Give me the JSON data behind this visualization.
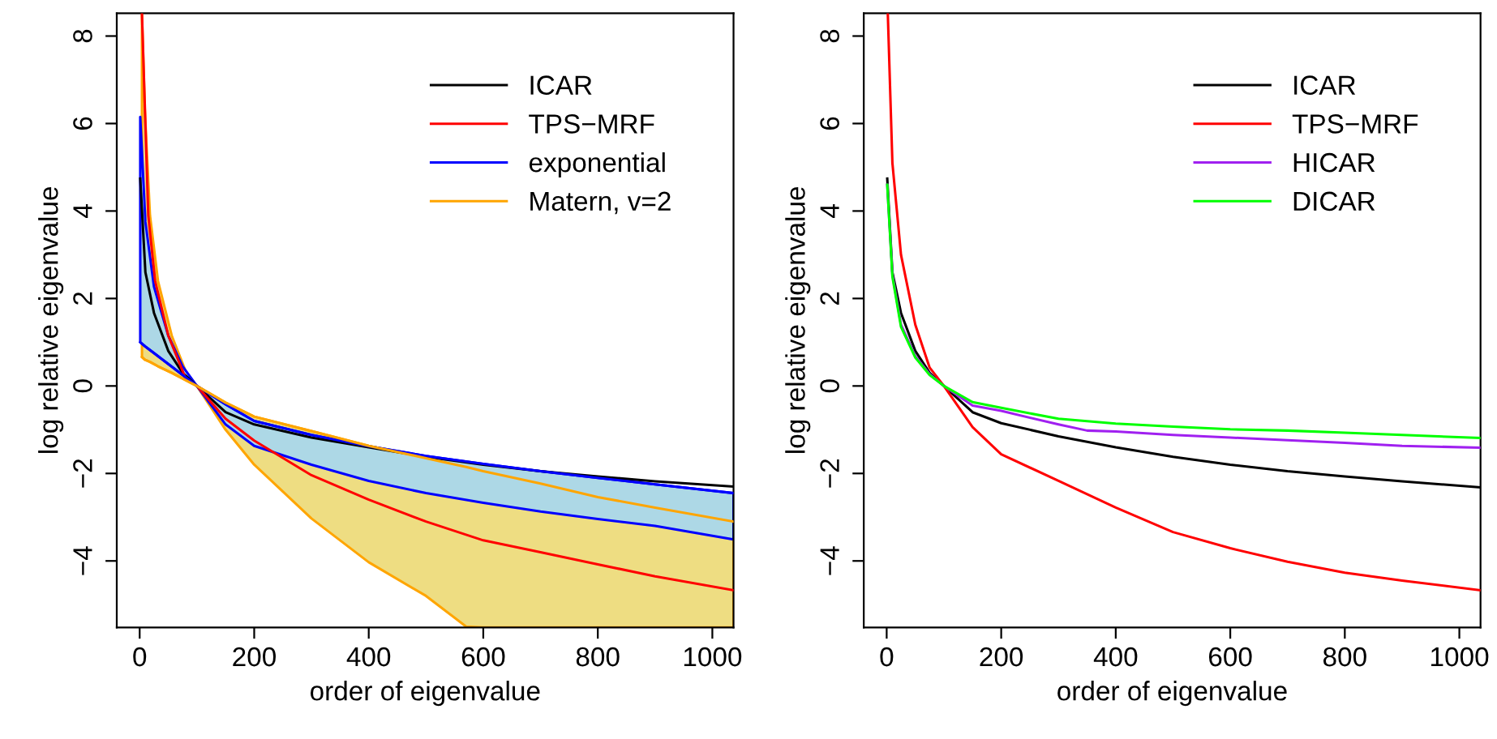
{
  "chart_data": [
    {
      "type": "line",
      "xlabel": "order of eigenvalue",
      "ylabel": "log relative eigenvalue",
      "xlim": [
        -40,
        1037
      ],
      "ylim": [
        -5.52,
        8.52
      ],
      "xticks": [
        0,
        200,
        400,
        600,
        800,
        1000
      ],
      "yticks": [
        -4,
        -2,
        0,
        2,
        4,
        6,
        8
      ],
      "grid": false,
      "legend": "top right",
      "marker": "none",
      "line_style": "solid",
      "series": [
        {
          "name": "ICAR",
          "color": "#000000",
          "x": [
            1,
            10,
            25,
            50,
            75,
            100,
            150,
            200,
            300,
            400,
            500,
            600,
            700,
            800,
            900,
            1037
          ],
          "values": [
            4.74,
            2.6,
            1.67,
            0.8,
            0.3,
            0,
            -0.6,
            -0.88,
            -1.18,
            -1.4,
            -1.62,
            -1.8,
            -1.95,
            -2.07,
            -2.18,
            -2.3
          ]
        },
        {
          "name": "TPS−MRF",
          "color": "#ff0000",
          "x": [
            4,
            15,
            27,
            50,
            80,
            100,
            150,
            200,
            300,
            400,
            500,
            600,
            700,
            800,
            900,
            1037
          ],
          "values": [
            8.5,
            3.9,
            2.4,
            1.15,
            0.18,
            0,
            -0.75,
            -1.25,
            -2.04,
            -2.6,
            -3.1,
            -3.53,
            -3.8,
            -4.08,
            -4.35,
            -4.67
          ]
        },
        {
          "name": "exponential",
          "color": "#0000ff",
          "x": [
            1,
            10,
            25,
            50,
            75,
            100,
            150,
            200,
            300,
            400,
            500,
            600,
            700,
            800,
            900,
            1037
          ],
          "values": [
            1.0,
            0.9,
            0.75,
            0.5,
            0.25,
            0,
            -0.42,
            -0.8,
            -1.12,
            -1.38,
            -1.6,
            -1.78,
            -1.95,
            -2.1,
            -2.25,
            -2.45
          ],
          "lower": [
            6.15,
            3.75,
            2.27,
            1.15,
            0.45,
            0,
            -0.88,
            -1.37,
            -1.8,
            -2.17,
            -2.45,
            -2.67,
            -2.87,
            -3.04,
            -3.2,
            -3.51
          ],
          "upper": [
            1.0,
            0.9,
            0.75,
            0.5,
            0.25,
            0,
            -0.42,
            -0.8,
            -1.12,
            -1.38,
            -1.6,
            -1.78,
            -1.95,
            -2.1,
            -2.25,
            -2.45
          ]
        },
        {
          "name": "Matern, v=2",
          "color": "#ffa500",
          "x": [
            4,
            9,
            18,
            32,
            56,
            85,
            100,
            150,
            200,
            300,
            400,
            500,
            570,
            600,
            700,
            800,
            900,
            1037
          ],
          "values": [
            0.66,
            0.6,
            0.55,
            0.45,
            0.3,
            0.1,
            0,
            -0.38,
            -0.7,
            -1.03,
            -1.37,
            -1.65,
            -1.85,
            -1.95,
            -2.23,
            -2.54,
            -2.78,
            -3.1
          ],
          "lower": [
            8.5,
            6.3,
            3.9,
            2.4,
            1.15,
            0.18,
            0,
            -1.0,
            -1.8,
            -3.03,
            -4.03,
            -4.8,
            -5.5,
            -5.52,
            -5.52,
            -5.52,
            -5.52,
            -5.52
          ],
          "upper": [
            0.66,
            0.6,
            0.55,
            0.45,
            0.3,
            0.1,
            0,
            -0.38,
            -0.7,
            -1.03,
            -1.37,
            -1.65,
            -1.85,
            -1.95,
            -2.23,
            -2.54,
            -2.78,
            -3.1
          ]
        }
      ]
    },
    {
      "type": "line",
      "xlabel": "order of eigenvalue",
      "ylabel": "log relative eigenvalue",
      "xlim": [
        -40,
        1037
      ],
      "ylim": [
        -5.52,
        8.52
      ],
      "xticks": [
        0,
        200,
        400,
        600,
        800,
        1000
      ],
      "yticks": [
        -4,
        -2,
        0,
        2,
        4,
        6,
        8
      ],
      "grid": false,
      "legend": "top right",
      "marker": "none",
      "line_style": "solid",
      "series": [
        {
          "name": "ICAR",
          "color": "#000000",
          "x": [
            1,
            10,
            25,
            50,
            75,
            100,
            150,
            200,
            300,
            400,
            500,
            600,
            700,
            800,
            900,
            1037
          ],
          "values": [
            4.74,
            2.6,
            1.67,
            0.8,
            0.3,
            0,
            -0.6,
            -0.85,
            -1.15,
            -1.4,
            -1.62,
            -1.8,
            -1.95,
            -2.07,
            -2.18,
            -2.32
          ]
        },
        {
          "name": "TPS−MRF",
          "color": "#ff0000",
          "x": [
            2,
            10,
            25,
            50,
            75,
            100,
            150,
            200,
            300,
            400,
            500,
            600,
            700,
            800,
            900,
            1037
          ],
          "values": [
            8.5,
            5.1,
            3.0,
            1.4,
            0.42,
            0,
            -0.94,
            -1.56,
            -2.17,
            -2.78,
            -3.34,
            -3.71,
            -4.02,
            -4.27,
            -4.45,
            -4.67
          ]
        },
        {
          "name": "HICAR",
          "color": "#a020f0",
          "x": [
            1,
            10,
            25,
            50,
            75,
            100,
            150,
            200,
            300,
            350,
            400,
            500,
            600,
            700,
            800,
            900,
            1037
          ],
          "values": [
            4.6,
            2.55,
            1.4,
            0.68,
            0.27,
            0,
            -0.45,
            -0.57,
            -0.88,
            -1.02,
            -1.04,
            -1.12,
            -1.18,
            -1.24,
            -1.3,
            -1.37,
            -1.41
          ]
        },
        {
          "name": "DICAR",
          "color": "#00ff00",
          "x": [
            1,
            10,
            25,
            50,
            75,
            100,
            150,
            200,
            300,
            400,
            500,
            600,
            700,
            800,
            900,
            1037
          ],
          "values": [
            4.6,
            2.5,
            1.35,
            0.65,
            0.25,
            0,
            -0.37,
            -0.5,
            -0.75,
            -0.86,
            -0.93,
            -0.99,
            -1.02,
            -1.07,
            -1.12,
            -1.19
          ]
        }
      ]
    }
  ]
}
